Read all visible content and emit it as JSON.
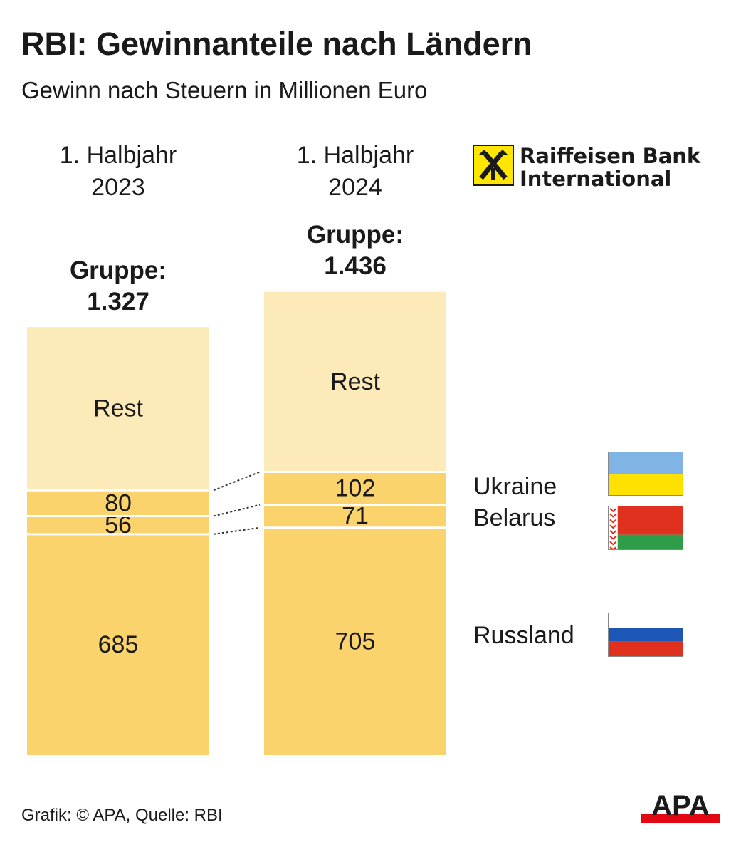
{
  "title": "RBI: Gewinnanteile nach Ländern",
  "subtitle": "Gewinn nach Steuern in Millionen Euro",
  "logo": {
    "line1": "Raiffeisen Bank",
    "line2": "International"
  },
  "footer": "Grafik: © APA, Quelle: RBI",
  "publisher_logo": "APA",
  "colors": {
    "rest": "#fcebb9",
    "segment": "#fbd36c",
    "separator": "#ffffff",
    "logo_yellow": "#ffe600",
    "apa_red": "#e30613"
  },
  "chart_data": {
    "type": "stacked-bar",
    "title": "RBI: Gewinnanteile nach Ländern",
    "unit": "Gewinn nach Steuern in Millionen Euro",
    "categories": [
      {
        "line1": "1. Halbjahr",
        "line2": "2023"
      },
      {
        "line1": "1. Halbjahr",
        "line2": "2024"
      }
    ],
    "totals": [
      {
        "label": "Gruppe:",
        "value": 1327,
        "display": "1.327"
      },
      {
        "label": "Gruppe:",
        "value": 1436,
        "display": "1.436"
      }
    ],
    "series": [
      {
        "name": "Russland",
        "values": [
          685,
          705
        ],
        "flag": "russia-flag"
      },
      {
        "name": "Belarus",
        "values": [
          56,
          71
        ],
        "flag": "belarus-flag"
      },
      {
        "name": "Ukraine",
        "values": [
          80,
          102
        ],
        "flag": "ukraine-flag"
      },
      {
        "name": "Rest",
        "values": [
          506,
          558
        ]
      }
    ]
  }
}
